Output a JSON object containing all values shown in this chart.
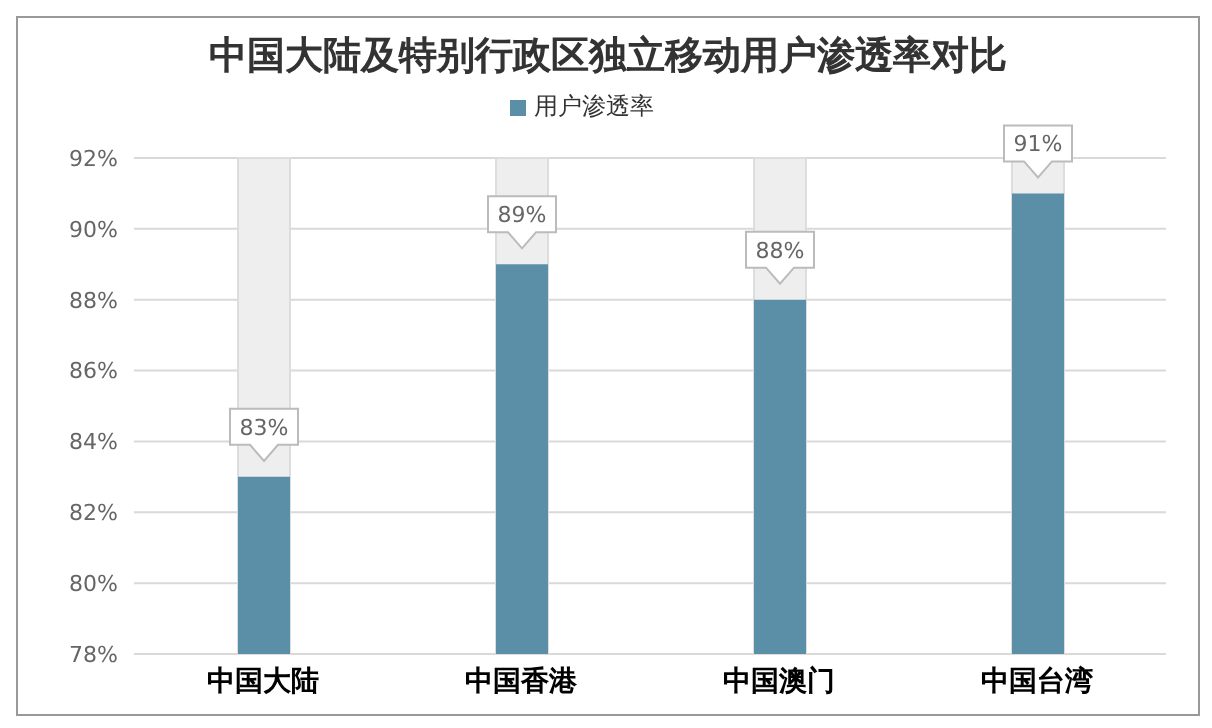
{
  "chart_data": {
    "type": "bar",
    "title": "中国大陆及特别行政区独立移动用户渗透率对比",
    "categories": [
      "中国大陆",
      "中国香港",
      "中国澳门",
      "中国台湾"
    ],
    "series": [
      {
        "name": "用户渗透率",
        "color": "#5b8fa8",
        "values": [
          83,
          89,
          88,
          91
        ],
        "value_labels": [
          "83%",
          "89%",
          "88%",
          "91%"
        ]
      }
    ],
    "ylim": [
      78,
      92
    ],
    "yticks": [
      {
        "value": 78,
        "label": "78%"
      },
      {
        "value": 80,
        "label": "80%"
      },
      {
        "value": 82,
        "label": "82%"
      },
      {
        "value": 84,
        "label": "84%"
      },
      {
        "value": 86,
        "label": "86%"
      },
      {
        "value": 88,
        "label": "88%"
      },
      {
        "value": 90,
        "label": "90%"
      },
      {
        "value": 92,
        "label": "92%"
      }
    ],
    "grid": "y",
    "legend": "top"
  }
}
